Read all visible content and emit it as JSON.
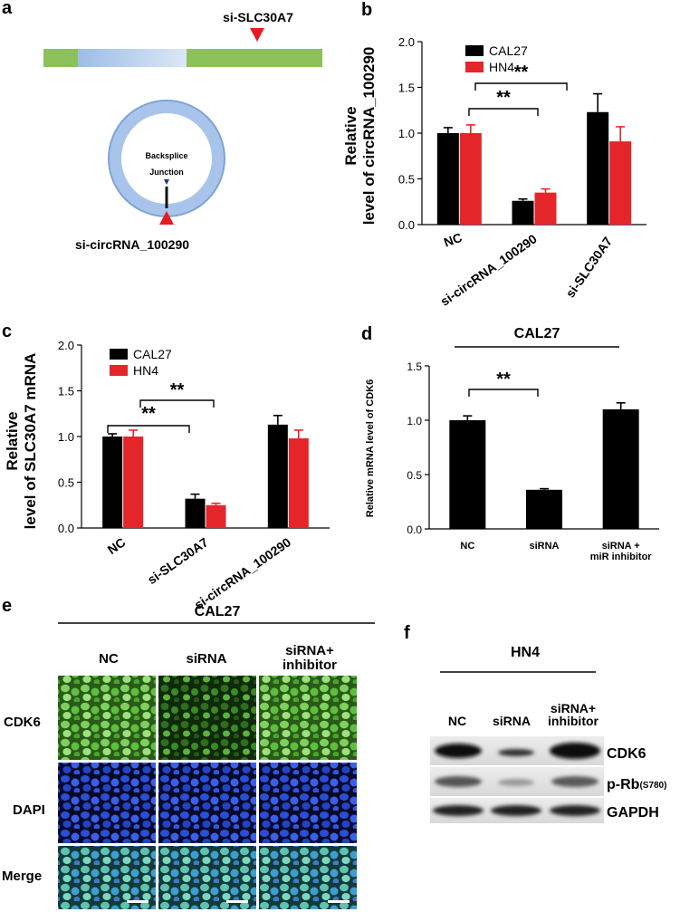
{
  "panel_a": {
    "letter": "a",
    "si_slc_label": "si-SLC30A7",
    "backsplice_line1": "Backsplice",
    "backsplice_line2": "Junction",
    "si_circ_label": "si-circRNA_100290"
  },
  "panel_b": {
    "letter": "b",
    "sig1": "**",
    "sig2": "**"
  },
  "panel_c": {
    "letter": "c",
    "sig1": "**",
    "sig2": "**"
  },
  "panel_d": {
    "letter": "d",
    "title": "CAL27",
    "sig1": "**"
  },
  "panel_e": {
    "letter": "e",
    "title": "CAL27",
    "columns": [
      "NC",
      "siRNA",
      "siRNA+\ninhibitor"
    ],
    "rows": [
      "CDK6",
      "DAPI",
      "Merge"
    ]
  },
  "panel_f": {
    "letter": "f",
    "title": "HN4",
    "columns": [
      "NC",
      "siRNA",
      "siRNA+\ninhibitor"
    ],
    "rows": [
      "CDK6",
      "p-Rb",
      "GAPDH"
    ],
    "prb_sub": "(S780)"
  },
  "colors": {
    "cal27": "#000000",
    "hn4": "#e4262a",
    "green_exon": "#8cc05a",
    "blue_exon": "#a8c6ea",
    "arrow": "#e31b23"
  },
  "chart_data": [
    {
      "id": "b",
      "type": "bar",
      "ylabel": "Relative\nlevel of circRNA_100290",
      "categories": [
        "NC",
        "si-circRNA_100290",
        "si-SLC30A7"
      ],
      "series": [
        {
          "name": "CAL27",
          "values": [
            1.0,
            0.26,
            1.23
          ],
          "errors": [
            0.06,
            0.02,
            0.2
          ]
        },
        {
          "name": "HN4",
          "values": [
            1.0,
            0.35,
            0.91
          ],
          "errors": [
            0.09,
            0.04,
            0.16
          ]
        }
      ],
      "ylim": [
        0,
        2.0
      ],
      "yticks": [
        "0.0",
        "0.5",
        "1.0",
        "1.5",
        "2.0"
      ],
      "legend": "top-left"
    },
    {
      "id": "c",
      "type": "bar",
      "ylabel": "Relative\nlevel of SLC30A7 mRNA",
      "categories": [
        "NC",
        "si-SLC30A7",
        "si-circRNA_100290"
      ],
      "series": [
        {
          "name": "CAL27",
          "values": [
            1.0,
            0.32,
            1.13
          ],
          "errors": [
            0.03,
            0.05,
            0.1
          ]
        },
        {
          "name": "HN4",
          "values": [
            1.0,
            0.25,
            0.98
          ],
          "errors": [
            0.07,
            0.02,
            0.09
          ]
        }
      ],
      "ylim": [
        0,
        2.0
      ],
      "yticks": [
        "0.0",
        "0.5",
        "1.0",
        "1.5",
        "2.0"
      ],
      "legend": "top-left"
    },
    {
      "id": "d",
      "type": "bar",
      "ylabel": "Relative mRNA level of CDK6",
      "categories": [
        "NC",
        "siRNA",
        "siRNA +\nmiR inhibitor"
      ],
      "series": [
        {
          "values": [
            1.0,
            0.36,
            1.1
          ],
          "errors": [
            0.04,
            0.01,
            0.06
          ]
        }
      ],
      "ylim": [
        0,
        1.5
      ],
      "yticks": [
        "0.0",
        "0.5",
        "1.0",
        "1.5"
      ]
    }
  ]
}
